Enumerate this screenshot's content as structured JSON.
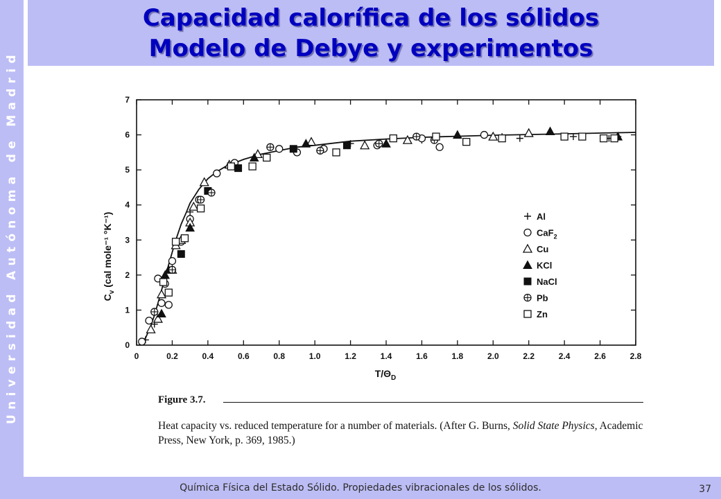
{
  "sidebar": {
    "text": "Universidad Autónoma de Madrid"
  },
  "header": {
    "title_line1": "Capacidad calorífica de los sólidos",
    "title_line2": "Modelo de Debye y experimentos"
  },
  "footer": {
    "text": "Química Física del Estado Sólido. Propiedades vibracionales de los sólidos.",
    "page": "37"
  },
  "caption": {
    "label": "Figure 3.7.",
    "text_1": "Heat capacity vs. reduced temperature for a number of materials. (After G. Burns, ",
    "text_italic": "Solid State Physics",
    "text_2": ", Academic Press, New York, p. 369, 1985.)"
  },
  "chart_data": {
    "type": "scatter",
    "x_ticks": [
      "0",
      "0.2",
      "0.4",
      "0.6",
      "0.8",
      "1.0",
      "1.2",
      "1.4",
      "1.6",
      "1.8",
      "2.0",
      "2.2",
      "2.4",
      "2.6",
      "2.8"
    ],
    "y_ticks": [
      "0",
      "1",
      "2",
      "3",
      "4",
      "5",
      "6",
      "7"
    ],
    "xlim": [
      0,
      2.8
    ],
    "ylim": [
      0,
      7
    ],
    "xlabel": "T/Θ",
    "xlabel_sub": "D",
    "ylabel": "C",
    "ylabel_sub": "v",
    "ylabel_units": " (cal mole⁻¹ °K⁻¹)",
    "grid": false,
    "legend_position": "right",
    "curve": {
      "x": [
        0.02,
        0.05,
        0.08,
        0.1,
        0.12,
        0.15,
        0.18,
        0.2,
        0.22,
        0.25,
        0.28,
        0.3,
        0.35,
        0.4,
        0.45,
        0.5,
        0.6,
        0.7,
        0.8,
        0.9,
        1.0,
        1.2,
        1.4,
        1.6,
        1.8,
        2.0,
        2.2,
        2.4,
        2.6,
        2.8
      ],
      "y": [
        0.05,
        0.2,
        0.55,
        0.85,
        1.2,
        1.75,
        2.3,
        2.65,
        3.0,
        3.45,
        3.8,
        4.05,
        4.45,
        4.75,
        4.95,
        5.1,
        5.3,
        5.45,
        5.55,
        5.65,
        5.7,
        5.82,
        5.88,
        5.93,
        5.96,
        5.99,
        6.01,
        6.03,
        6.05,
        6.07
      ]
    },
    "series": [
      {
        "name": "Al",
        "marker": "plus",
        "x": [
          0.05,
          0.1,
          0.3,
          1.2,
          1.6,
          2.05,
          2.15,
          2.45,
          2.65,
          2.7
        ],
        "y": [
          0.15,
          0.6,
          3.8,
          5.75,
          5.85,
          5.95,
          5.9,
          5.95,
          5.9,
          5.95
        ]
      },
      {
        "name": "CaF",
        "name_sub": "2",
        "marker": "circle",
        "x": [
          0.03,
          0.07,
          0.12,
          0.14,
          0.16,
          0.18,
          0.2,
          0.25,
          0.3,
          0.35,
          0.45,
          0.55,
          0.8,
          0.9,
          1.05,
          1.35,
          1.6,
          1.7,
          1.95
        ],
        "y": [
          0.1,
          0.7,
          1.9,
          1.2,
          1.75,
          1.15,
          2.4,
          2.95,
          3.6,
          4.15,
          4.9,
          5.2,
          5.6,
          5.5,
          5.6,
          5.7,
          5.9,
          5.65,
          6.0
        ]
      },
      {
        "name": "Cu",
        "marker": "triangle",
        "x": [
          0.08,
          0.12,
          0.14,
          0.2,
          0.22,
          0.25,
          0.3,
          0.32,
          0.38,
          0.52,
          0.68,
          0.98,
          1.28,
          1.52,
          2.0,
          2.2
        ],
        "y": [
          0.45,
          0.75,
          1.45,
          2.15,
          2.85,
          3.0,
          3.5,
          3.95,
          4.65,
          5.15,
          5.45,
          5.8,
          5.7,
          5.85,
          5.95,
          6.05
        ]
      },
      {
        "name": "KCl",
        "marker": "triangle-filled",
        "x": [
          0.14,
          0.16,
          0.18,
          0.3,
          0.66,
          0.95,
          1.4,
          1.8,
          2.32,
          2.7
        ],
        "y": [
          0.9,
          2.0,
          2.15,
          3.35,
          5.35,
          5.75,
          5.75,
          6.0,
          6.1,
          5.95
        ]
      },
      {
        "name": "NaCl",
        "marker": "square-filled",
        "x": [
          0.25,
          0.4,
          0.57,
          0.88,
          1.18
        ],
        "y": [
          2.6,
          4.4,
          5.05,
          5.6,
          5.7
        ]
      },
      {
        "name": "Pb",
        "marker": "cross-circle",
        "x": [
          0.1,
          0.2,
          0.36,
          0.42,
          0.75,
          1.03,
          1.36,
          1.57,
          1.67
        ],
        "y": [
          0.95,
          2.15,
          4.15,
          4.35,
          5.65,
          5.55,
          5.75,
          5.95,
          5.85
        ]
      },
      {
        "name": "Zn",
        "marker": "square",
        "x": [
          0.15,
          0.18,
          0.22,
          0.27,
          0.36,
          0.53,
          0.65,
          0.73,
          1.12,
          1.44,
          1.68,
          1.85,
          2.05,
          2.4,
          2.5,
          2.62,
          2.68
        ],
        "y": [
          1.8,
          1.5,
          2.95,
          3.05,
          3.9,
          5.1,
          5.1,
          5.35,
          5.5,
          5.9,
          5.95,
          5.8,
          5.9,
          5.95,
          5.95,
          5.9,
          5.9
        ]
      }
    ]
  }
}
